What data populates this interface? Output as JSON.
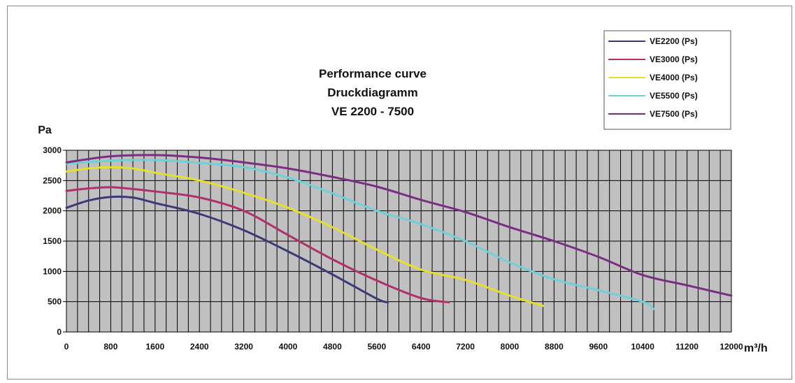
{
  "chart_data": {
    "type": "line",
    "title": [
      "Performance curve",
      "Druckdiagramm",
      "VE 2200 - 7500"
    ],
    "ylabel": "Pa",
    "xlabel": "m³/h",
    "xlim": [
      0,
      12000
    ],
    "ylim": [
      0,
      3000
    ],
    "x_ticks": [
      "0",
      "800",
      "1600",
      "2400",
      "3200",
      "4000",
      "4800",
      "5600",
      "6400",
      "7200",
      "8000",
      "8800",
      "9600",
      "10400",
      "11200",
      "12000"
    ],
    "y_ticks": [
      "0",
      "500",
      "1000",
      "1500",
      "2000",
      "2500",
      "3000"
    ],
    "grid": true,
    "plot_background": "#c0c0c0",
    "legend_position": "top-right",
    "series": [
      {
        "name": "VE2200 (Ps)",
        "color": "#3a3a78",
        "points": [
          [
            0,
            2050
          ],
          [
            400,
            2170
          ],
          [
            800,
            2230
          ],
          [
            1200,
            2220
          ],
          [
            1600,
            2130
          ],
          [
            2400,
            1950
          ],
          [
            3200,
            1680
          ],
          [
            4000,
            1330
          ],
          [
            4800,
            950
          ],
          [
            5600,
            550
          ],
          [
            5800,
            490
          ]
        ]
      },
      {
        "name": "VE3000 (Ps)",
        "color": "#b0306c",
        "points": [
          [
            0,
            2330
          ],
          [
            400,
            2370
          ],
          [
            800,
            2390
          ],
          [
            1200,
            2360
          ],
          [
            1600,
            2320
          ],
          [
            2400,
            2220
          ],
          [
            3200,
            2000
          ],
          [
            4000,
            1600
          ],
          [
            4800,
            1200
          ],
          [
            5600,
            850
          ],
          [
            6400,
            560
          ],
          [
            6900,
            490
          ]
        ]
      },
      {
        "name": "VE4000 (Ps)",
        "color": "#e5e030",
        "points": [
          [
            0,
            2650
          ],
          [
            400,
            2700
          ],
          [
            800,
            2720
          ],
          [
            1200,
            2700
          ],
          [
            1600,
            2630
          ],
          [
            2400,
            2500
          ],
          [
            3200,
            2300
          ],
          [
            4000,
            2050
          ],
          [
            4800,
            1730
          ],
          [
            5600,
            1360
          ],
          [
            6400,
            1030
          ],
          [
            7200,
            860
          ],
          [
            8000,
            600
          ],
          [
            8600,
            430
          ]
        ]
      },
      {
        "name": "VE5500 (Ps)",
        "color": "#6fd0d8",
        "points": [
          [
            0,
            2780
          ],
          [
            800,
            2830
          ],
          [
            1600,
            2840
          ],
          [
            2400,
            2790
          ],
          [
            3200,
            2720
          ],
          [
            4000,
            2550
          ],
          [
            4800,
            2290
          ],
          [
            5600,
            2000
          ],
          [
            6400,
            1780
          ],
          [
            7200,
            1500
          ],
          [
            8000,
            1150
          ],
          [
            8800,
            870
          ],
          [
            9600,
            690
          ],
          [
            10400,
            500
          ],
          [
            10600,
            380
          ]
        ]
      },
      {
        "name": "VE7500 (Ps)",
        "color": "#7a2e82",
        "points": [
          [
            0,
            2800
          ],
          [
            800,
            2900
          ],
          [
            1600,
            2920
          ],
          [
            2400,
            2880
          ],
          [
            3200,
            2800
          ],
          [
            4000,
            2700
          ],
          [
            4800,
            2560
          ],
          [
            5600,
            2400
          ],
          [
            6400,
            2180
          ],
          [
            7200,
            1980
          ],
          [
            8000,
            1730
          ],
          [
            8800,
            1500
          ],
          [
            9600,
            1240
          ],
          [
            10400,
            940
          ],
          [
            11200,
            770
          ],
          [
            12000,
            600
          ]
        ]
      }
    ]
  }
}
